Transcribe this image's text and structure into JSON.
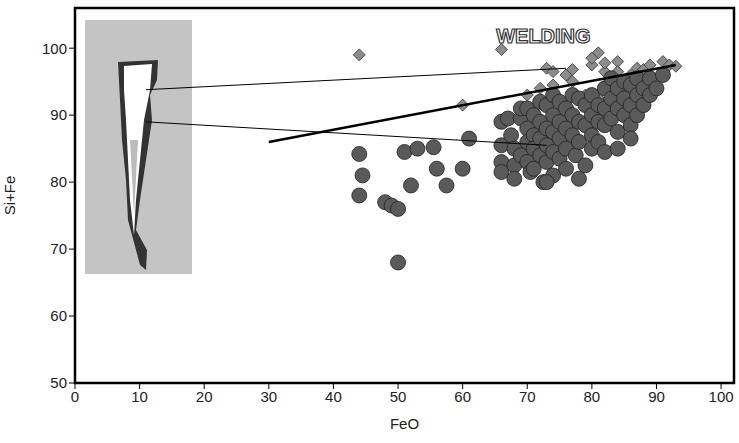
{
  "chart_data": {
    "type": "scatter",
    "x_label": "FeO",
    "y_label": "Si+Fe",
    "xlim": [
      0,
      102
    ],
    "xticks": [
      0,
      10,
      20,
      30,
      40,
      50,
      60,
      70,
      80,
      90,
      100
    ],
    "ylim": [
      50,
      106
    ],
    "yticks": [
      50,
      60,
      70,
      80,
      90,
      100
    ],
    "grid": false,
    "annotations": [
      {
        "text": "WELDING",
        "x": 72.5,
        "y": 101.8
      }
    ],
    "series": [
      {
        "color": "#8c8c8c",
        "marker": "diamond",
        "x": [
          44,
          66,
          81,
          60,
          70,
          73,
          74,
          76,
          77,
          72,
          74,
          77,
          80,
          80,
          82,
          82,
          83,
          84,
          84,
          86,
          87,
          88,
          89,
          91,
          92,
          93,
          79,
          81,
          83,
          85,
          86,
          75
        ],
        "values": [
          99,
          99.8,
          99.3,
          91.5,
          93,
          97,
          96.5,
          96,
          96.8,
          94,
          94.5,
          95,
          97.5,
          98.5,
          96.5,
          97.8,
          95.5,
          98,
          96.5,
          96,
          97,
          96.8,
          97.5,
          98,
          97.5,
          97.3,
          93,
          92.5,
          93.5,
          94,
          94.5,
          92
        ]
      },
      {
        "color": "#5a5a5a",
        "marker": "circle",
        "x": [
          44,
          44.5,
          44,
          48,
          49,
          50,
          50,
          51,
          53,
          52,
          55.5,
          56,
          57.5,
          60,
          61,
          66,
          66,
          66,
          66,
          67,
          67.5,
          68,
          68,
          69,
          69,
          69,
          70,
          70,
          70,
          70,
          70.5,
          71,
          71,
          71,
          71,
          72,
          72,
          72,
          72,
          72.5,
          73,
          73,
          73,
          73,
          74,
          74,
          74,
          74,
          74,
          75,
          75,
          75,
          75,
          76,
          76,
          76,
          77,
          77,
          77,
          77.5,
          78,
          78,
          78,
          79,
          79,
          79,
          80,
          80,
          80,
          80,
          81,
          81,
          81,
          82,
          82,
          82,
          82,
          83,
          83,
          83,
          84,
          84,
          84,
          84,
          85,
          85,
          85,
          86,
          86,
          86,
          87,
          87,
          87,
          88,
          88,
          89,
          89,
          90,
          91,
          86,
          78,
          76,
          73,
          68
        ],
        "values": [
          84.2,
          81,
          78,
          77,
          76.5,
          76,
          68,
          84.5,
          85,
          79.5,
          85.2,
          82,
          79.5,
          82,
          86.5,
          89,
          85.5,
          83,
          81.5,
          89.5,
          87,
          85,
          82.5,
          89.5,
          91,
          84,
          91,
          88,
          86,
          83,
          81.5,
          90,
          87,
          85,
          82,
          92,
          89,
          86.5,
          84,
          80,
          91.5,
          88,
          85.5,
          83,
          93,
          90,
          87.5,
          84.5,
          81,
          92,
          89,
          86.5,
          83.5,
          91,
          88,
          85,
          93,
          90,
          87,
          84,
          92.5,
          89,
          86,
          91.5,
          88.5,
          82.5,
          93,
          90,
          87,
          85,
          91.5,
          89,
          86,
          94,
          91,
          88.5,
          84.5,
          95.5,
          92.5,
          89.5,
          94,
          91,
          87.5,
          85,
          95,
          92.5,
          90,
          94.5,
          91.5,
          88.5,
          95.5,
          93,
          90,
          94,
          91.5,
          95.5,
          93,
          94,
          96,
          86.5,
          80.5,
          82,
          80,
          80.5
        ]
      },
      {
        "type": "line",
        "color": "#000000",
        "line_style": "thick",
        "x": [
          30,
          93
        ],
        "values": [
          86,
          97.5
        ]
      },
      {
        "type": "line",
        "color": "#000000",
        "line_style": "solid",
        "x": [
          11,
          76
        ],
        "values": [
          93.8,
          97
        ]
      },
      {
        "type": "line",
        "color": "#000000",
        "line_style": "solid",
        "x": [
          11,
          73
        ],
        "values": [
          89,
          85.5
        ]
      }
    ]
  }
}
